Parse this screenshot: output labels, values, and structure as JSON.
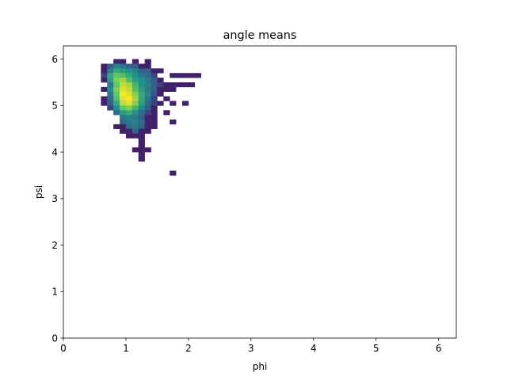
{
  "chart_data": {
    "type": "heatmap",
    "title": "angle means",
    "xlabel": "phi",
    "ylabel": "psi",
    "xlim": [
      0,
      6.283
    ],
    "ylim": [
      0,
      6.283
    ],
    "xticks": [
      0,
      1,
      2,
      3,
      4,
      5,
      6
    ],
    "yticks": [
      0,
      1,
      2,
      3,
      4,
      5,
      6
    ],
    "grid": false,
    "legend": "none",
    "colormap": "viridis",
    "bin_width": 0.1,
    "bin_height": 0.1,
    "bins": [
      {
        "x": 0.85,
        "y": 5.95,
        "v": 0.1
      },
      {
        "x": 0.95,
        "y": 5.95,
        "v": 0.1
      },
      {
        "x": 1.15,
        "y": 5.95,
        "v": 0.1
      },
      {
        "x": 1.35,
        "y": 5.95,
        "v": 0.1
      },
      {
        "x": 0.65,
        "y": 5.85,
        "v": 0.1
      },
      {
        "x": 0.75,
        "y": 5.85,
        "v": 0.3
      },
      {
        "x": 0.85,
        "y": 5.85,
        "v": 0.45
      },
      {
        "x": 0.95,
        "y": 5.85,
        "v": 0.4
      },
      {
        "x": 1.05,
        "y": 5.85,
        "v": 0.3
      },
      {
        "x": 1.15,
        "y": 5.85,
        "v": 0.3
      },
      {
        "x": 1.25,
        "y": 5.85,
        "v": 0.1
      },
      {
        "x": 1.35,
        "y": 5.85,
        "v": 0.1
      },
      {
        "x": 0.65,
        "y": 5.75,
        "v": 0.1
      },
      {
        "x": 0.75,
        "y": 5.75,
        "v": 0.45
      },
      {
        "x": 0.85,
        "y": 5.75,
        "v": 0.6
      },
      {
        "x": 0.95,
        "y": 5.75,
        "v": 0.55
      },
      {
        "x": 1.05,
        "y": 5.75,
        "v": 0.5
      },
      {
        "x": 1.15,
        "y": 5.75,
        "v": 0.45
      },
      {
        "x": 1.25,
        "y": 5.75,
        "v": 0.3
      },
      {
        "x": 1.35,
        "y": 5.75,
        "v": 0.3
      },
      {
        "x": 1.45,
        "y": 5.75,
        "v": 0.1
      },
      {
        "x": 1.55,
        "y": 5.75,
        "v": 0.1
      },
      {
        "x": 0.65,
        "y": 5.65,
        "v": 0.2
      },
      {
        "x": 0.75,
        "y": 5.65,
        "v": 0.6
      },
      {
        "x": 0.85,
        "y": 5.65,
        "v": 0.75
      },
      {
        "x": 0.95,
        "y": 5.65,
        "v": 0.7
      },
      {
        "x": 1.05,
        "y": 5.65,
        "v": 0.6
      },
      {
        "x": 1.15,
        "y": 5.65,
        "v": 0.5
      },
      {
        "x": 1.25,
        "y": 5.65,
        "v": 0.4
      },
      {
        "x": 1.35,
        "y": 5.65,
        "v": 0.35
      },
      {
        "x": 1.45,
        "y": 5.65,
        "v": 0.2
      },
      {
        "x": 1.75,
        "y": 5.65,
        "v": 0.1
      },
      {
        "x": 1.85,
        "y": 5.65,
        "v": 0.1
      },
      {
        "x": 1.95,
        "y": 5.65,
        "v": 0.1
      },
      {
        "x": 2.05,
        "y": 5.65,
        "v": 0.1
      },
      {
        "x": 2.15,
        "y": 5.65,
        "v": 0.1
      },
      {
        "x": 0.65,
        "y": 5.55,
        "v": 0.1
      },
      {
        "x": 0.75,
        "y": 5.55,
        "v": 0.55
      },
      {
        "x": 0.85,
        "y": 5.55,
        "v": 0.8
      },
      {
        "x": 0.95,
        "y": 5.55,
        "v": 0.85
      },
      {
        "x": 1.05,
        "y": 5.55,
        "v": 0.7
      },
      {
        "x": 1.15,
        "y": 5.55,
        "v": 0.55
      },
      {
        "x": 1.25,
        "y": 5.55,
        "v": 0.5
      },
      {
        "x": 1.35,
        "y": 5.55,
        "v": 0.4
      },
      {
        "x": 1.45,
        "y": 5.55,
        "v": 0.3
      },
      {
        "x": 1.55,
        "y": 5.55,
        "v": 0.1
      },
      {
        "x": 0.75,
        "y": 5.45,
        "v": 0.4
      },
      {
        "x": 0.85,
        "y": 5.45,
        "v": 0.75
      },
      {
        "x": 0.95,
        "y": 5.45,
        "v": 0.9
      },
      {
        "x": 1.05,
        "y": 5.45,
        "v": 0.85
      },
      {
        "x": 1.15,
        "y": 5.45,
        "v": 0.65
      },
      {
        "x": 1.25,
        "y": 5.45,
        "v": 0.5
      },
      {
        "x": 1.35,
        "y": 5.45,
        "v": 0.45
      },
      {
        "x": 1.45,
        "y": 5.45,
        "v": 0.3
      },
      {
        "x": 1.55,
        "y": 5.45,
        "v": 0.2
      },
      {
        "x": 1.65,
        "y": 5.45,
        "v": 0.1
      },
      {
        "x": 1.75,
        "y": 5.45,
        "v": 0.1
      },
      {
        "x": 1.85,
        "y": 5.45,
        "v": 0.1
      },
      {
        "x": 1.95,
        "y": 5.45,
        "v": 0.1
      },
      {
        "x": 2.05,
        "y": 5.45,
        "v": 0.1
      },
      {
        "x": 0.65,
        "y": 5.35,
        "v": 0.1
      },
      {
        "x": 0.75,
        "y": 5.35,
        "v": 0.5
      },
      {
        "x": 0.85,
        "y": 5.35,
        "v": 0.8
      },
      {
        "x": 0.95,
        "y": 5.35,
        "v": 0.95
      },
      {
        "x": 1.05,
        "y": 5.35,
        "v": 0.9
      },
      {
        "x": 1.15,
        "y": 5.35,
        "v": 0.7
      },
      {
        "x": 1.25,
        "y": 5.35,
        "v": 0.55
      },
      {
        "x": 1.35,
        "y": 5.35,
        "v": 0.4
      },
      {
        "x": 1.45,
        "y": 5.35,
        "v": 0.3
      },
      {
        "x": 1.55,
        "y": 5.35,
        "v": 0.1
      },
      {
        "x": 1.65,
        "y": 5.35,
        "v": 0.1
      },
      {
        "x": 1.75,
        "y": 5.35,
        "v": 0.1
      },
      {
        "x": 0.75,
        "y": 5.25,
        "v": 0.4
      },
      {
        "x": 0.85,
        "y": 5.25,
        "v": 0.75
      },
      {
        "x": 0.95,
        "y": 5.25,
        "v": 1.0
      },
      {
        "x": 1.05,
        "y": 5.25,
        "v": 0.95
      },
      {
        "x": 1.15,
        "y": 5.25,
        "v": 0.8
      },
      {
        "x": 1.25,
        "y": 5.25,
        "v": 0.6
      },
      {
        "x": 1.35,
        "y": 5.25,
        "v": 0.45
      },
      {
        "x": 1.45,
        "y": 5.25,
        "v": 0.25
      },
      {
        "x": 1.55,
        "y": 5.25,
        "v": 0.1
      },
      {
        "x": 0.65,
        "y": 5.15,
        "v": 0.1
      },
      {
        "x": 0.75,
        "y": 5.15,
        "v": 0.35
      },
      {
        "x": 0.85,
        "y": 5.15,
        "v": 0.7
      },
      {
        "x": 0.95,
        "y": 5.15,
        "v": 0.95
      },
      {
        "x": 1.05,
        "y": 5.15,
        "v": 1.0
      },
      {
        "x": 1.15,
        "y": 5.15,
        "v": 0.85
      },
      {
        "x": 1.25,
        "y": 5.15,
        "v": 0.6
      },
      {
        "x": 1.35,
        "y": 5.15,
        "v": 0.4
      },
      {
        "x": 1.45,
        "y": 5.15,
        "v": 0.2
      },
      {
        "x": 1.65,
        "y": 5.15,
        "v": 0.1
      },
      {
        "x": 0.65,
        "y": 5.05,
        "v": 0.1
      },
      {
        "x": 0.75,
        "y": 5.05,
        "v": 0.3
      },
      {
        "x": 0.85,
        "y": 5.05,
        "v": 0.6
      },
      {
        "x": 0.95,
        "y": 5.05,
        "v": 0.9
      },
      {
        "x": 1.05,
        "y": 5.05,
        "v": 0.95
      },
      {
        "x": 1.15,
        "y": 5.05,
        "v": 0.8
      },
      {
        "x": 1.25,
        "y": 5.05,
        "v": 0.55
      },
      {
        "x": 1.35,
        "y": 5.05,
        "v": 0.35
      },
      {
        "x": 1.45,
        "y": 5.05,
        "v": 0.2
      },
      {
        "x": 1.55,
        "y": 5.05,
        "v": 0.1
      },
      {
        "x": 1.75,
        "y": 5.05,
        "v": 0.1
      },
      {
        "x": 1.95,
        "y": 5.05,
        "v": 0.1
      },
      {
        "x": 0.75,
        "y": 4.95,
        "v": 0.2
      },
      {
        "x": 0.85,
        "y": 4.95,
        "v": 0.5
      },
      {
        "x": 0.95,
        "y": 4.95,
        "v": 0.75
      },
      {
        "x": 1.05,
        "y": 4.95,
        "v": 0.8
      },
      {
        "x": 1.15,
        "y": 4.95,
        "v": 0.65
      },
      {
        "x": 1.25,
        "y": 4.95,
        "v": 0.45
      },
      {
        "x": 1.35,
        "y": 4.95,
        "v": 0.3
      },
      {
        "x": 1.45,
        "y": 4.95,
        "v": 0.1
      },
      {
        "x": 0.85,
        "y": 4.85,
        "v": 0.35
      },
      {
        "x": 0.95,
        "y": 4.85,
        "v": 0.55
      },
      {
        "x": 1.05,
        "y": 4.85,
        "v": 0.6
      },
      {
        "x": 1.15,
        "y": 4.85,
        "v": 0.5
      },
      {
        "x": 1.25,
        "y": 4.85,
        "v": 0.35
      },
      {
        "x": 1.35,
        "y": 4.85,
        "v": 0.2
      },
      {
        "x": 1.45,
        "y": 4.85,
        "v": 0.1
      },
      {
        "x": 1.65,
        "y": 4.85,
        "v": 0.1
      },
      {
        "x": 0.95,
        "y": 4.75,
        "v": 0.4
      },
      {
        "x": 1.05,
        "y": 4.75,
        "v": 0.45
      },
      {
        "x": 1.15,
        "y": 4.75,
        "v": 0.4
      },
      {
        "x": 1.25,
        "y": 4.75,
        "v": 0.3
      },
      {
        "x": 1.35,
        "y": 4.75,
        "v": 0.1
      },
      {
        "x": 1.45,
        "y": 4.75,
        "v": 0.1
      },
      {
        "x": 0.95,
        "y": 4.65,
        "v": 0.35
      },
      {
        "x": 1.05,
        "y": 4.65,
        "v": 0.4
      },
      {
        "x": 1.15,
        "y": 4.65,
        "v": 0.45
      },
      {
        "x": 1.25,
        "y": 4.65,
        "v": 0.35
      },
      {
        "x": 1.35,
        "y": 4.65,
        "v": 0.1
      },
      {
        "x": 1.45,
        "y": 4.65,
        "v": 0.1
      },
      {
        "x": 1.75,
        "y": 4.65,
        "v": 0.1
      },
      {
        "x": 0.85,
        "y": 4.55,
        "v": 0.1
      },
      {
        "x": 0.95,
        "y": 4.55,
        "v": 0.1
      },
      {
        "x": 1.05,
        "y": 4.55,
        "v": 0.35
      },
      {
        "x": 1.15,
        "y": 4.55,
        "v": 0.4
      },
      {
        "x": 1.25,
        "y": 4.55,
        "v": 0.3
      },
      {
        "x": 1.35,
        "y": 4.55,
        "v": 0.1
      },
      {
        "x": 1.45,
        "y": 4.55,
        "v": 0.1
      },
      {
        "x": 0.95,
        "y": 4.45,
        "v": 0.1
      },
      {
        "x": 1.05,
        "y": 4.45,
        "v": 0.1
      },
      {
        "x": 1.15,
        "y": 4.45,
        "v": 0.3
      },
      {
        "x": 1.25,
        "y": 4.45,
        "v": 0.1
      },
      {
        "x": 1.35,
        "y": 4.45,
        "v": 0.1
      },
      {
        "x": 1.05,
        "y": 4.35,
        "v": 0.1
      },
      {
        "x": 1.15,
        "y": 4.35,
        "v": 0.1
      },
      {
        "x": 1.25,
        "y": 4.35,
        "v": 0.1
      },
      {
        "x": 1.25,
        "y": 4.25,
        "v": 0.1
      },
      {
        "x": 1.25,
        "y": 4.15,
        "v": 0.1
      },
      {
        "x": 1.15,
        "y": 4.05,
        "v": 0.1
      },
      {
        "x": 1.25,
        "y": 4.05,
        "v": 0.1
      },
      {
        "x": 1.35,
        "y": 4.05,
        "v": 0.1
      },
      {
        "x": 1.25,
        "y": 3.95,
        "v": 0.1
      },
      {
        "x": 1.25,
        "y": 3.85,
        "v": 0.1
      },
      {
        "x": 1.75,
        "y": 3.55,
        "v": 0.1
      }
    ]
  }
}
